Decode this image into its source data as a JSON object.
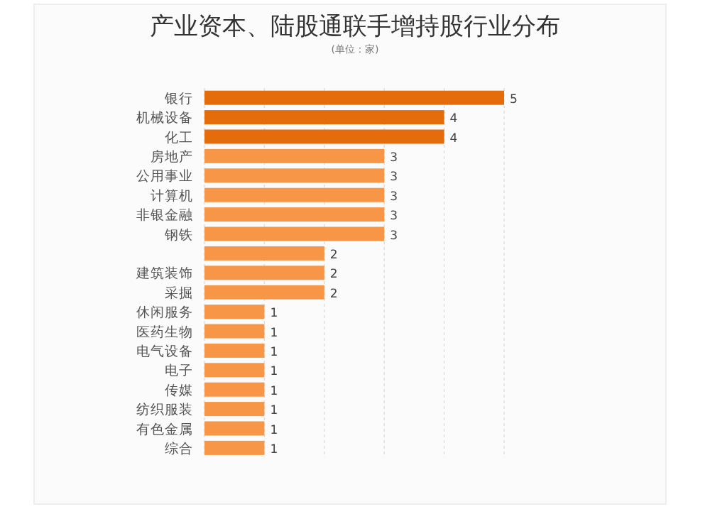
{
  "chart_data": {
    "type": "bar",
    "orientation": "horizontal",
    "title": "产业资本、陆股通联手增持股行业分布",
    "subtitle": "(单位：家)",
    "categories": [
      "银行",
      "机械设备",
      "化工",
      "房地产",
      "公用事业",
      "计算机",
      "非银金融",
      "钢铁",
      null,
      "建筑装饰",
      "采掘",
      "休闲服务",
      "医药生物",
      "电气设备",
      "电子",
      "传媒",
      "纺织服装",
      "有色金属",
      "综合"
    ],
    "values": [
      5,
      4,
      4,
      3,
      3,
      3,
      3,
      3,
      2,
      2,
      2,
      1,
      1,
      1,
      1,
      1,
      1,
      1,
      1
    ],
    "colors": [
      "#e46c0a",
      "#e46c0a",
      "#e46c0a",
      "#f79646",
      "#f79646",
      "#f79646",
      "#f79646",
      "#f79646",
      "#f79646",
      "#f79646",
      "#f79646",
      "#f79646",
      "#f79646",
      "#f79646",
      "#f79646",
      "#f79646",
      "#f79646",
      "#f79646",
      "#f79646"
    ],
    "xticks": [
      {
        "value": 0,
        "label": null
      },
      {
        "value": 1,
        "label": null
      },
      {
        "value": 2,
        "label": null
      },
      {
        "value": 3,
        "label": null
      },
      {
        "value": 4,
        "label": null
      },
      {
        "value": 5,
        "label": null
      }
    ],
    "grid": "x",
    "tick_labels": "y",
    "data_labels": true
  }
}
